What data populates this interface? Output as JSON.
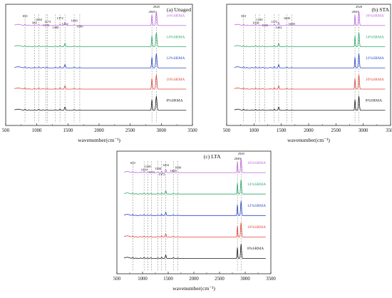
{
  "figure": {
    "colors": {
      "8%SRMA": "#1a1a1a",
      "10%SRMA": "#e0453a",
      "12%SRMA": "#2a46c8",
      "14%SRMA": "#2aa86a",
      "16%SRMA": "#c066e0"
    }
  },
  "chart_data": [
    {
      "type": "line",
      "title": "(a) Unaged",
      "xlabel": "wavenumber(cm⁻¹)",
      "ylabel": "",
      "xlim": [
        500,
        3500
      ],
      "x_ticks": [
        "500",
        "1000",
        "1500",
        "2000",
        "2500",
        "3000",
        "3500"
      ],
      "grid": false,
      "series_order_bottom_to_top": [
        "8%SRMA",
        "10%SRMA",
        "12%SRMA",
        "14%SRMA",
        "16%SRMA"
      ],
      "series": [
        {
          "name": "8%SRMA"
        },
        {
          "name": "10%SRMA"
        },
        {
          "name": "12%SRMA"
        },
        {
          "name": "14%SRMA"
        },
        {
          "name": "16%SRMA"
        }
      ],
      "peak_markers": [
        {
          "x": 810,
          "label": "810"
        },
        {
          "x": 965,
          "label": "965"
        },
        {
          "x": 1030,
          "label": "1030"
        },
        {
          "x": 1150,
          "label": "1150"
        },
        {
          "x": 1173,
          "label": "1173"
        },
        {
          "x": 1300,
          "label": "1300"
        },
        {
          "x": 1372,
          "label": "1372"
        },
        {
          "x": 1452,
          "label": "1452"
        },
        {
          "x": 1600,
          "label": "1600"
        },
        {
          "x": 1690,
          "label": "1690"
        },
        {
          "x": 2849,
          "label": "2849"
        },
        {
          "x": 2920,
          "label": "2920"
        }
      ]
    },
    {
      "type": "line",
      "title": "(b) STA",
      "xlabel": "wavenumber(cm⁻¹)",
      "ylabel": "",
      "xlim": [
        500,
        3500
      ],
      "x_ticks": [
        "500",
        "1000",
        "1500",
        "2000",
        "2500",
        "3000",
        "3500"
      ],
      "grid": false,
      "series_order_bottom_to_top": [
        "8%SRMA",
        "10%SRMA",
        "12%SRMA",
        "14%SRMA",
        "16%SRMA"
      ],
      "series": [
        {
          "name": "8%SRMA"
        },
        {
          "name": "10%SRMA"
        },
        {
          "name": "12%SRMA"
        },
        {
          "name": "14%SRMA"
        },
        {
          "name": "16%SRMA"
        }
      ],
      "peak_markers": [
        {
          "x": 810,
          "label": "810"
        },
        {
          "x": 1030,
          "label": "1030"
        },
        {
          "x": 1100,
          "label": "1100"
        },
        {
          "x": 1200,
          "label": "1200"
        },
        {
          "x": 1372,
          "label": "1372"
        },
        {
          "x": 1452,
          "label": "1452"
        },
        {
          "x": 1600,
          "label": "1600"
        },
        {
          "x": 1690,
          "label": "1690"
        },
        {
          "x": 2849,
          "label": "2849"
        },
        {
          "x": 2920,
          "label": "2920"
        }
      ]
    },
    {
      "type": "line",
      "title": "(c) LTA",
      "xlabel": "wavenumber(cm⁻¹)",
      "ylabel": "",
      "xlim": [
        500,
        3500
      ],
      "x_ticks": [
        "500",
        "1000",
        "1500",
        "2000",
        "2500",
        "3000",
        "3500"
      ],
      "grid": false,
      "series_order_bottom_to_top": [
        "8%SRMA",
        "10%SRMA",
        "12%SRMA",
        "14%SRMA",
        "16%SRMA"
      ],
      "series": [
        {
          "name": "8%SRMA"
        },
        {
          "name": "10%SRMA"
        },
        {
          "name": "12%SRMA"
        },
        {
          "name": "14%SRMA"
        },
        {
          "name": "16%SRMA"
        }
      ],
      "peak_markers": [
        {
          "x": 810,
          "label": "810"
        },
        {
          "x": 1030,
          "label": "1030"
        },
        {
          "x": 1100,
          "label": "1100"
        },
        {
          "x": 1173,
          "label": "1173"
        },
        {
          "x": 1300,
          "label": "1300"
        },
        {
          "x": 1372,
          "label": "1372"
        },
        {
          "x": 1452,
          "label": "1452"
        },
        {
          "x": 1600,
          "label": "1600"
        },
        {
          "x": 1690,
          "label": "1690"
        },
        {
          "x": 2849,
          "label": "2849"
        },
        {
          "x": 2920,
          "label": "2920"
        }
      ]
    }
  ]
}
